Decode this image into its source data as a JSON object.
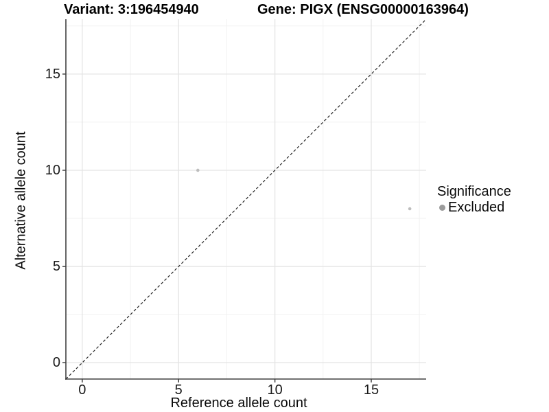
{
  "chart_data": {
    "type": "scatter",
    "title_left": "Variant: 3:196454940",
    "title_right": "Gene: PIGX (ENSG00000163964)",
    "xlabel": "Reference allele count",
    "ylabel": "Alternative allele count",
    "xlim": [
      -0.85,
      17.85
    ],
    "ylim": [
      -0.85,
      17.85
    ],
    "x_ticks": [
      0,
      5,
      10,
      15
    ],
    "y_ticks": [
      0,
      5,
      10,
      15
    ],
    "minor_gridlines": [
      2.5,
      7.5,
      12.5,
      17.5
    ],
    "grid": "major and minor gridlines on white background",
    "identity_line": {
      "equation": "y = x",
      "style": "dashed",
      "color": "#222222"
    },
    "series": [
      {
        "name": "Excluded",
        "point_color": "#bdbdbd",
        "points": [
          [
            6,
            10
          ],
          [
            17,
            8
          ]
        ]
      }
    ],
    "legend": {
      "position": "right",
      "title": "Significance",
      "items": [
        {
          "label": "Excluded",
          "color": "#9c9c9c"
        }
      ]
    },
    "colors": {
      "grid_major": "#e4e4e4",
      "grid_minor": "#f2f2f2",
      "axis_line": "#404040",
      "tick_mark": "#404040",
      "text": "#1a1a1a"
    }
  }
}
